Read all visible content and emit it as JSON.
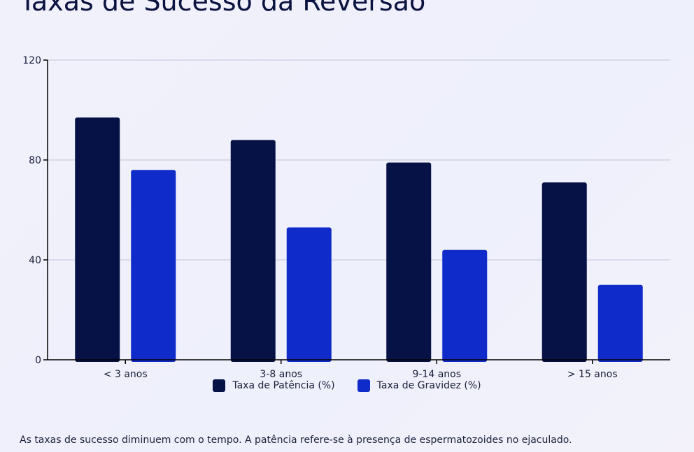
{
  "title": "Taxas de Sucesso da Reversão",
  "footnote": "As taxas de sucesso diminuem com o tempo. A patência refere-se à presença de espermatozoides no ejaculado.",
  "chart_data": {
    "type": "bar",
    "categories": [
      "< 3 anos",
      "3-8 anos",
      "9-14 anos",
      "> 15 anos"
    ],
    "series": [
      {
        "name": "Taxa de Patência (%)",
        "values": [
          97,
          88,
          79,
          71
        ],
        "color": "#061146"
      },
      {
        "name": "Taxa de Gravidez (%)",
        "values": [
          76,
          53,
          44,
          30
        ],
        "color": "#0f2bc9"
      }
    ],
    "ylim": [
      0,
      120
    ],
    "yticks": [
      0,
      40,
      80,
      120
    ],
    "grid": true,
    "legend": "bottom"
  }
}
